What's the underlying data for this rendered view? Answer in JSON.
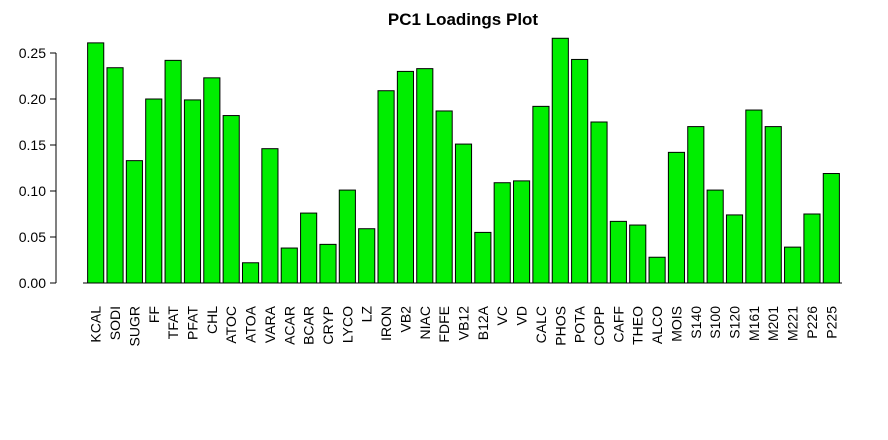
{
  "chart_data": {
    "type": "bar",
    "title": "PC1 Loadings Plot",
    "xlabel": "",
    "ylabel": "",
    "ylim": [
      0,
      0.27
    ],
    "yticks": [
      0.0,
      0.05,
      0.1,
      0.15,
      0.2,
      0.25
    ],
    "ytick_labels": [
      "0.00",
      "0.05",
      "0.10",
      "0.15",
      "0.20",
      "0.25"
    ],
    "grid": false,
    "bar_color": "#00ee00",
    "bar_border_color": "#000000",
    "categories": [
      "KCAL",
      "SODI",
      "SUGR",
      "FF",
      "TFAT",
      "PFAT",
      "CHL",
      "ATOC",
      "ATOA",
      "VARA",
      "ACAR",
      "BCAR",
      "CRYP",
      "LYCO",
      "LZ",
      "IRON",
      "VB2",
      "NIAC",
      "FDFE",
      "VB12",
      "B12A",
      "VC",
      "VD",
      "CALC",
      "PHOS",
      "POTA",
      "COPP",
      "CAFF",
      "THEO",
      "ALCO",
      "MOIS",
      "S140",
      "S100",
      "S120",
      "M161",
      "M201",
      "M221",
      "P226",
      "P225"
    ],
    "values": [
      0.261,
      0.234,
      0.133,
      0.2,
      0.242,
      0.199,
      0.223,
      0.182,
      0.022,
      0.146,
      0.038,
      0.076,
      0.042,
      0.101,
      0.059,
      0.209,
      0.23,
      0.233,
      0.187,
      0.151,
      0.055,
      0.109,
      0.111,
      0.192,
      0.266,
      0.243,
      0.175,
      0.067,
      0.063,
      0.028,
      0.142,
      0.17,
      0.101,
      0.074,
      0.188,
      0.17,
      0.039,
      0.075,
      0.119
    ]
  }
}
